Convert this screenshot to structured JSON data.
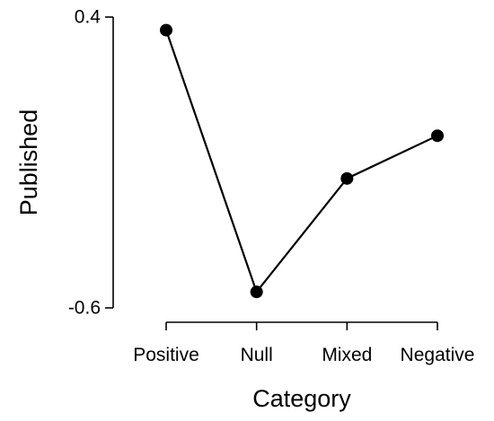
{
  "chart_data": {
    "type": "line",
    "title": "",
    "xlabel": "Category",
    "ylabel": "Published",
    "categories": [
      "Positive",
      "Null",
      "Mixed",
      "Negative"
    ],
    "series": [
      {
        "values": [
          0.355,
          -0.545,
          -0.155,
          -0.008
        ]
      }
    ],
    "ylim": [
      -0.6,
      0.4
    ],
    "yticks": [
      "-0.6",
      "0.4"
    ],
    "grid": false,
    "legend": "none",
    "colors": {
      "line": "#000000",
      "point": "#000000",
      "background": "#ffffff"
    }
  }
}
